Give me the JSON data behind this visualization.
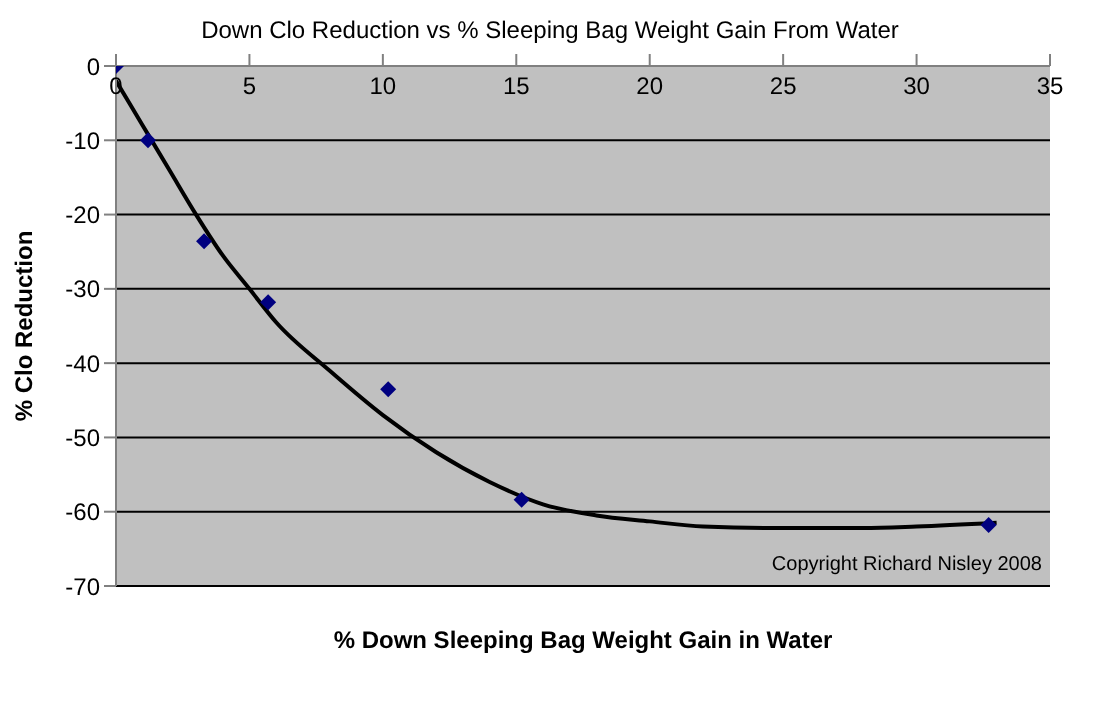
{
  "chart_data": {
    "type": "scatter",
    "title": "Down Clo Reduction vs % Sleeping Bag Weight Gain From Water",
    "xlabel": "% Down Sleeping Bag Weight Gain in Water",
    "ylabel": "% Clo Reduction",
    "annotations": [
      "Copyright Richard Nisley 2008"
    ],
    "xlim": [
      0,
      35
    ],
    "xticks": [
      0,
      5,
      10,
      15,
      20,
      25,
      30,
      35
    ],
    "ylim": [
      -70,
      0
    ],
    "yticks": [
      -70,
      -60,
      -50,
      -40,
      -30,
      -20,
      -10,
      0
    ],
    "grid": "y",
    "marker": "diamond",
    "legend": false,
    "series": [
      {
        "color": "#000080",
        "x": [
          0,
          1.2,
          3.3,
          5.7,
          10.2,
          15.2,
          32.7
        ],
        "values": [
          0,
          -10,
          -23.6,
          -31.8,
          -43.5,
          -58.4,
          -61.8
        ]
      },
      {
        "type": "line",
        "color": "#000000",
        "marker": "none",
        "x": [
          0,
          1,
          2,
          3,
          4,
          5,
          6,
          8,
          10,
          12,
          14,
          16,
          18,
          20,
          22,
          25,
          28,
          30,
          33
        ],
        "values": [
          -2,
          -8,
          -14,
          -20,
          -25.5,
          -30,
          -34.5,
          -41,
          -47,
          -52,
          -56,
          -59,
          -60.5,
          -61.3,
          -62,
          -62.2,
          -62.2,
          -62,
          -61.5
        ]
      }
    ]
  }
}
